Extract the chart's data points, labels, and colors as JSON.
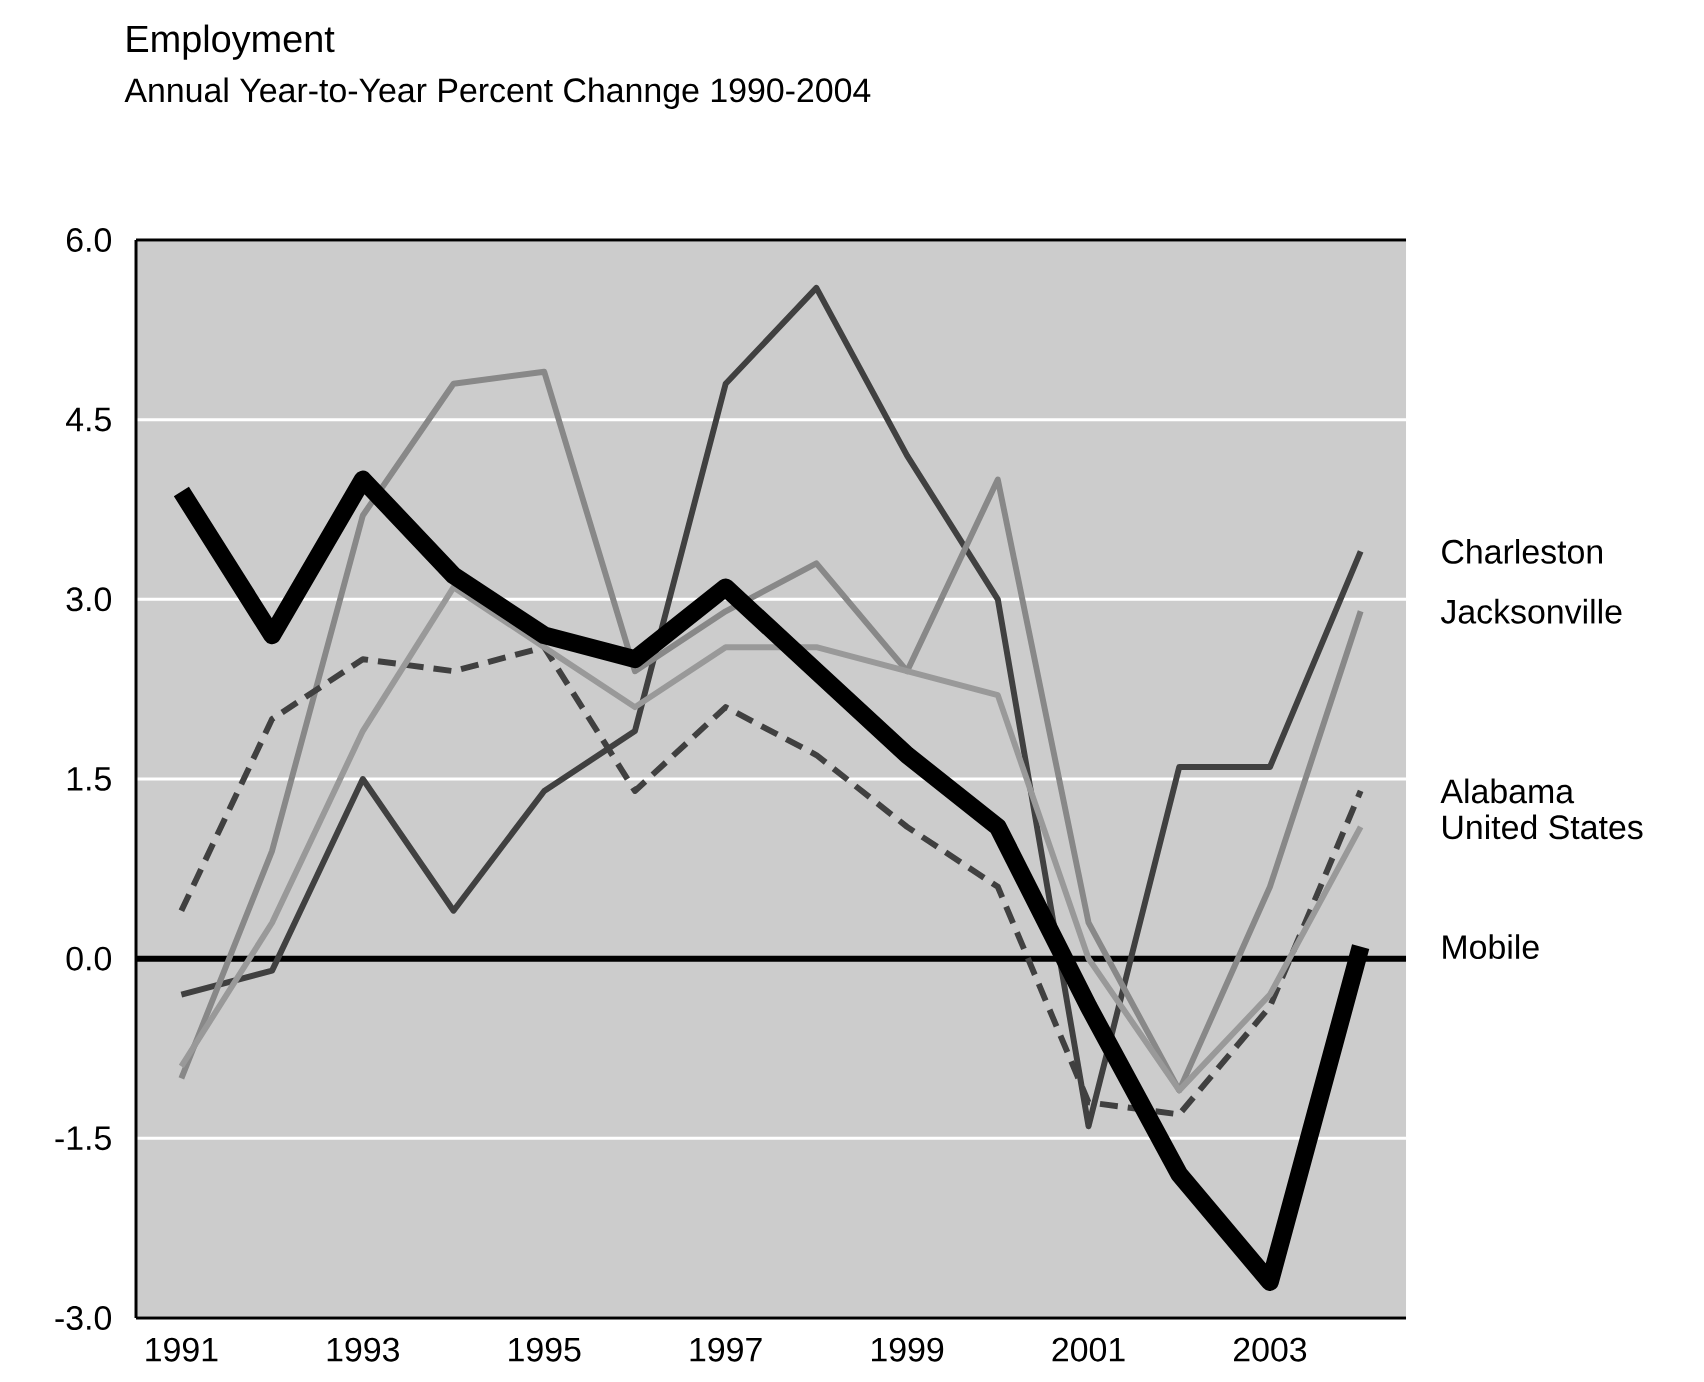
{
  "chart_data": {
    "type": "line",
    "title": "Employment",
    "subtitle": "Annual Year-to-Year Percent Channge 1990-2004",
    "x": [
      1991,
      1992,
      1993,
      1994,
      1995,
      1996,
      1997,
      1998,
      1999,
      2000,
      2001,
      2002,
      2003,
      2004
    ],
    "series": [
      {
        "name": "Charleston",
        "color": "#404040",
        "line_style": "solid",
        "values": [
          -0.3,
          -0.1,
          1.5,
          0.4,
          1.4,
          1.9,
          4.8,
          5.6,
          4.2,
          3.0,
          -1.4,
          1.6,
          1.6,
          3.4
        ]
      },
      {
        "name": "Jacksonville",
        "color": "#888888",
        "line_style": "solid",
        "values": [
          -1.0,
          0.9,
          3.7,
          4.8,
          4.9,
          2.4,
          2.9,
          3.3,
          2.4,
          4.0,
          0.3,
          -1.1,
          0.6,
          2.9
        ]
      },
      {
        "name": "Alabama",
        "color": "#404040",
        "line_style": "dashed",
        "values": [
          0.4,
          2.0,
          2.5,
          2.4,
          2.6,
          1.4,
          2.1,
          1.7,
          1.1,
          0.6,
          -1.2,
          -1.3,
          -0.4,
          1.4
        ]
      },
      {
        "name": "United States",
        "color": "#999999",
        "line_style": "solid",
        "values": [
          -0.9,
          0.3,
          1.9,
          3.1,
          2.6,
          2.1,
          2.6,
          2.6,
          2.4,
          2.2,
          0.0,
          -1.1,
          -0.3,
          1.1
        ]
      },
      {
        "name": "Mobile",
        "color": "#000000",
        "line_style": "solid",
        "values": [
          3.9,
          2.7,
          4.0,
          3.2,
          2.7,
          2.5,
          3.1,
          2.4,
          1.7,
          1.1,
          -0.4,
          -1.8,
          -2.7,
          0.1
        ]
      }
    ],
    "xlim": [
      1990.5,
      2004.5
    ],
    "ylim": [
      -3,
      6
    ],
    "xticks": [
      1991,
      1993,
      1995,
      1997,
      1999,
      2001,
      2003
    ],
    "yticks": [
      {
        "value": -3,
        "label": "-3.0"
      },
      {
        "value": -1.5,
        "label": "-1.5"
      },
      {
        "value": 0,
        "label": "0.0"
      },
      {
        "value": 1.5,
        "label": "1.5"
      },
      {
        "value": 3,
        "label": "3.0"
      },
      {
        "value": 4.5,
        "label": "4.5"
      },
      {
        "value": 6,
        "label": "6.0"
      }
    ],
    "grid": "y",
    "marker": "none",
    "ref_lines": [
      {
        "axis": "y",
        "value": 0,
        "color": "#000000"
      }
    ]
  }
}
